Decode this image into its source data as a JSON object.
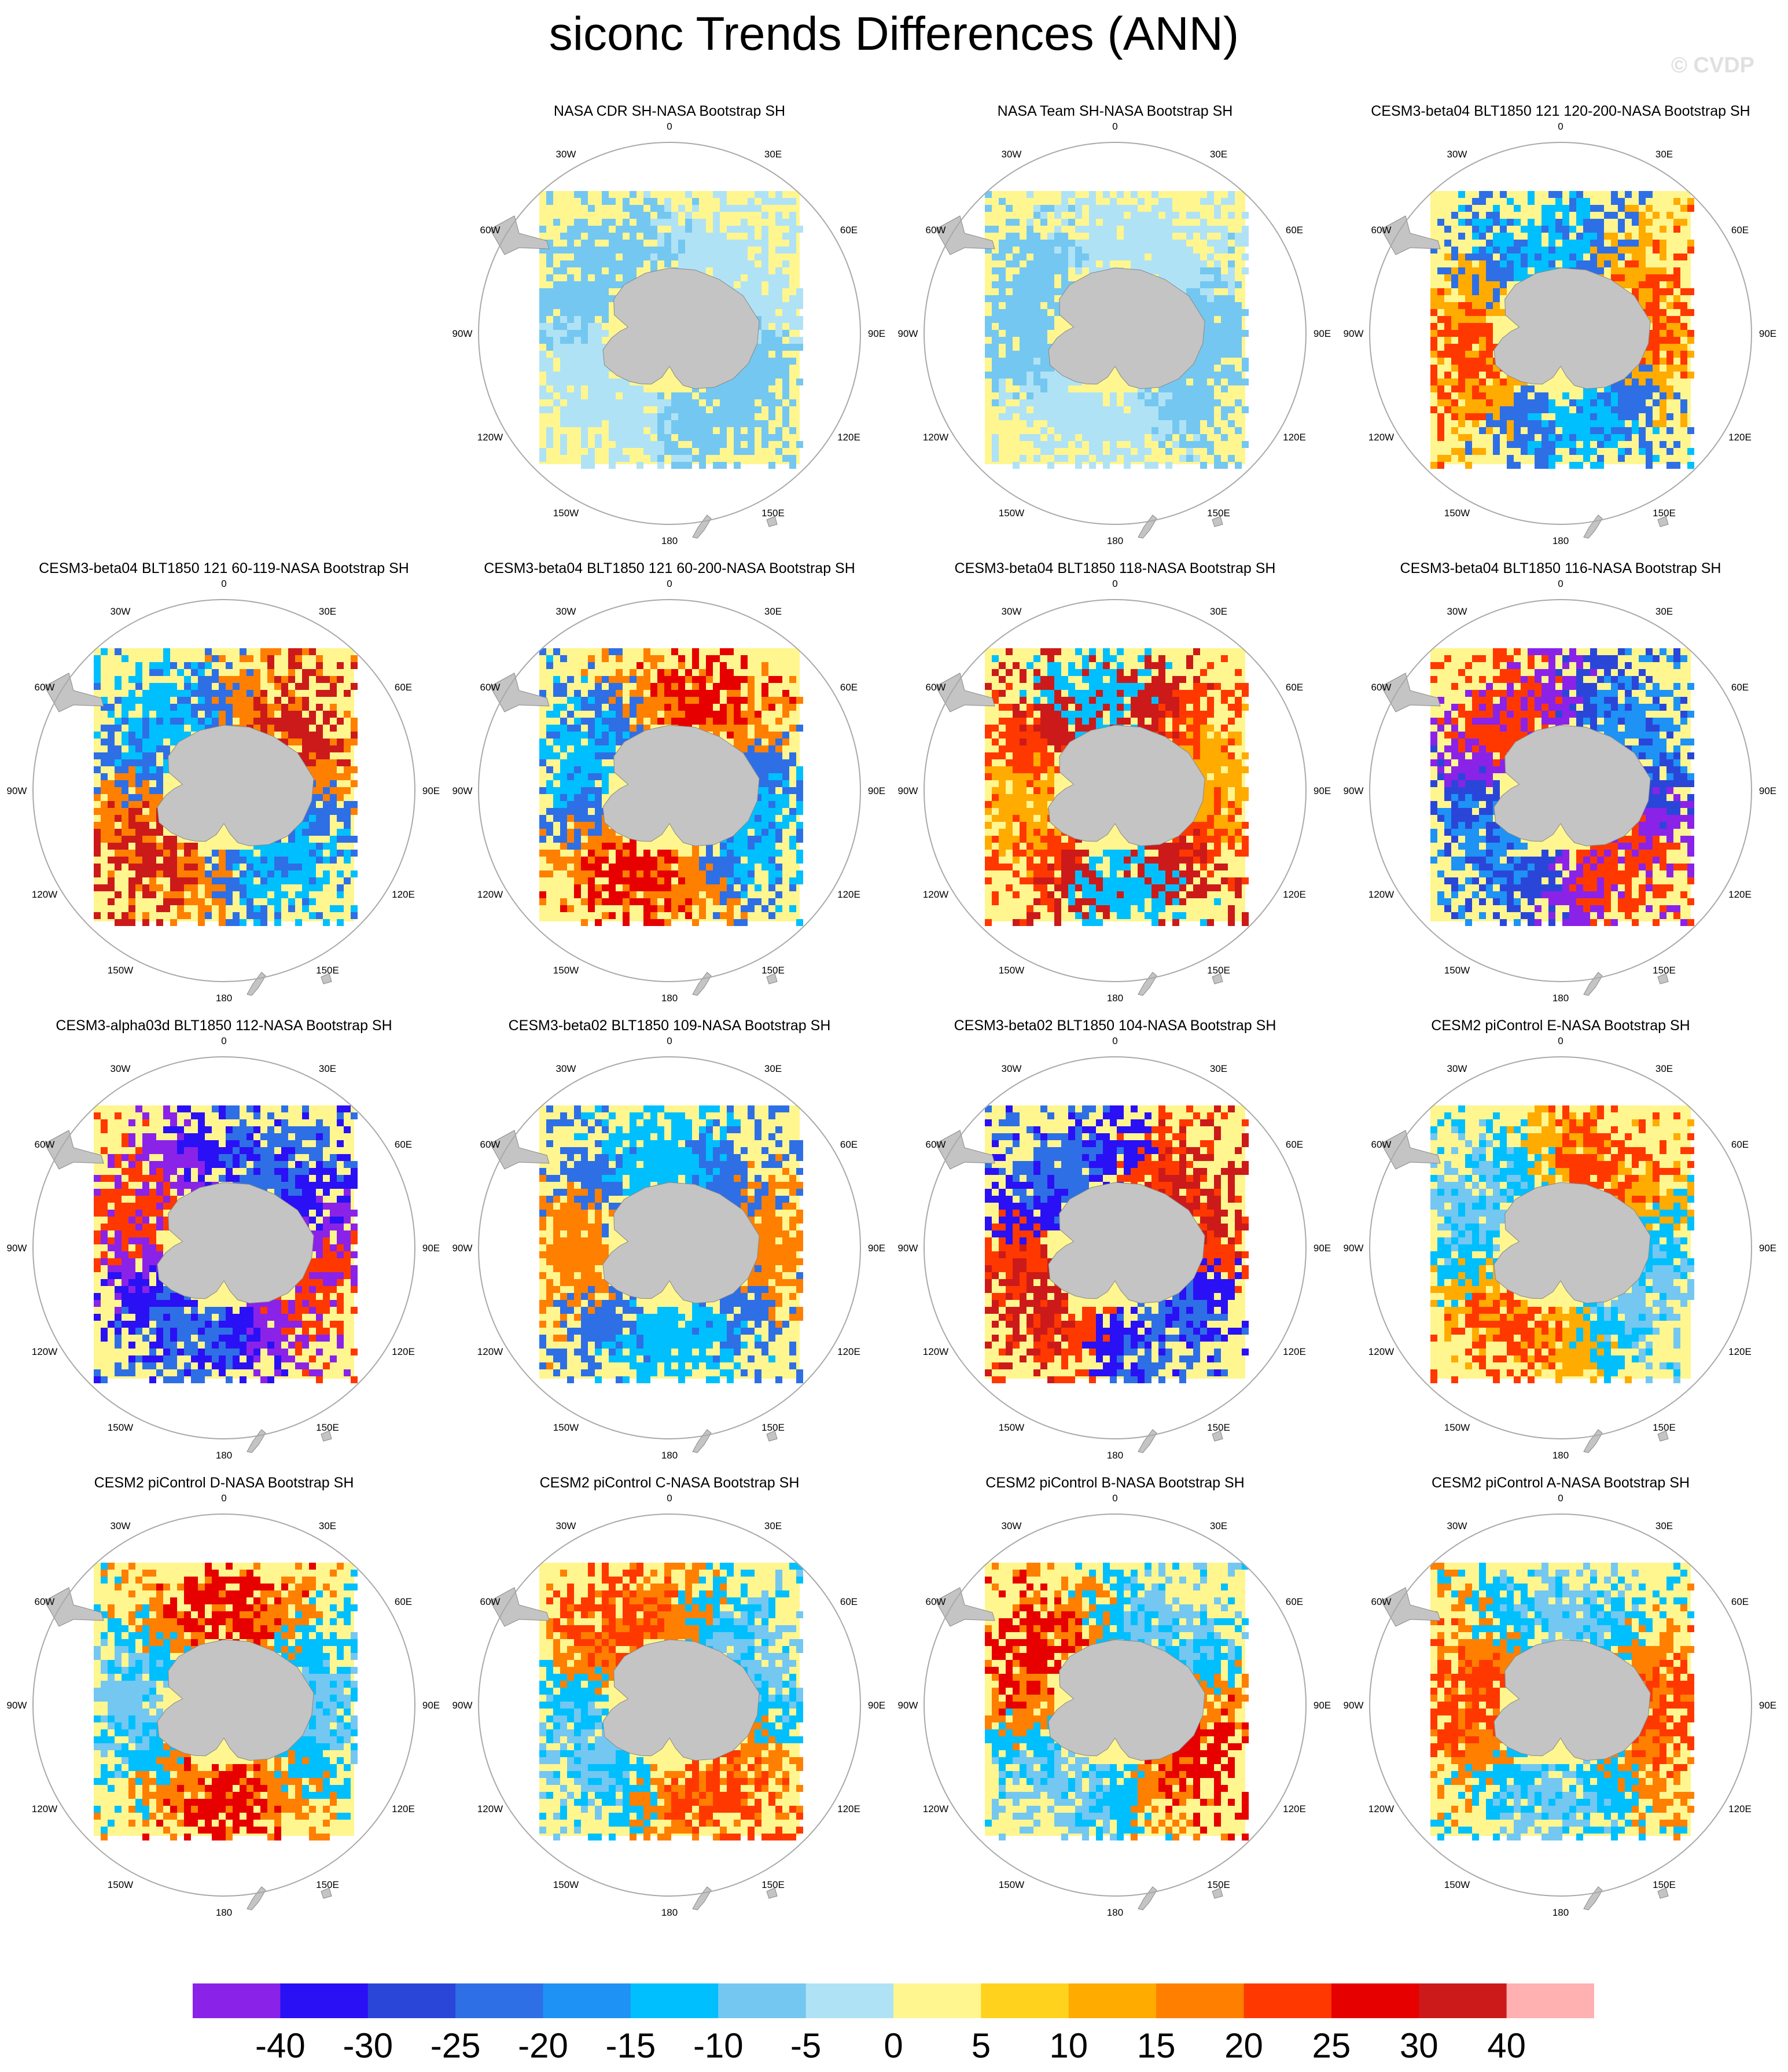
{
  "title": "siconc Trends Differences (ANN)",
  "watermark": "© CVDP",
  "lon_labels": [
    "0",
    "30E",
    "60E",
    "90E",
    "120E",
    "150E",
    "180",
    "150W",
    "120W",
    "90W",
    "60W",
    "30W"
  ],
  "colors": {
    "land": "#c4c4c4",
    "land_outline": "#888888",
    "frame": "#a9a9a9",
    "no_change": "#fff68f"
  },
  "colorbar": {
    "colors": [
      "#8b22e8",
      "#2a10f5",
      "#2a46d9",
      "#2e6fe6",
      "#1e92f5",
      "#00bfff",
      "#74c7f0",
      "#b0e2f5",
      "#fff68f",
      "#ffd21e",
      "#ffab00",
      "#ff7f00",
      "#ff3800",
      "#e60000",
      "#cc1a1a",
      "#ffb0b0"
    ],
    "labels": [
      "-40",
      "-30",
      "-25",
      "-20",
      "-15",
      "-10",
      "-5",
      "0",
      "5",
      "10",
      "15",
      "20",
      "25",
      "30",
      "40"
    ]
  },
  "chart_data": [
    {
      "type": "heatmap",
      "title": "NASA CDR SH-NASA Bootstrap SH",
      "pattern": "weak",
      "dominant_levels": [
        "0",
        "-5"
      ]
    },
    {
      "type": "heatmap",
      "title": "NASA Team SH-NASA Bootstrap SH",
      "pattern": "weak-negative",
      "dominant_levels": [
        "0",
        "-5"
      ]
    },
    {
      "type": "heatmap",
      "title": "CESM3-beta04 BLT1850 121 120-200-NASA Bootstrap SH",
      "pattern": "mixed",
      "dominant_levels": [
        "-10",
        "-20",
        "10",
        "20"
      ]
    },
    {
      "type": "heatmap",
      "title": "CESM3-beta04 BLT1850 121 60-119-NASA Bootstrap SH",
      "pattern": "mixed",
      "dominant_levels": [
        "-10",
        "-20",
        "15",
        "30"
      ]
    },
    {
      "type": "heatmap",
      "title": "CESM3-beta04 BLT1850 121 60-200-NASA Bootstrap SH",
      "pattern": "mixed",
      "dominant_levels": [
        "-10",
        "-20",
        "15",
        "25"
      ]
    },
    {
      "type": "heatmap",
      "title": "CESM3-beta04 BLT1850 118-NASA Bootstrap SH",
      "pattern": "positive",
      "dominant_levels": [
        "10",
        "20",
        "30",
        "-10"
      ]
    },
    {
      "type": "heatmap",
      "title": "CESM3-beta04 BLT1850 116-NASA Bootstrap SH",
      "pattern": "negative",
      "dominant_levels": [
        "-15",
        "-25",
        "-40",
        "20"
      ]
    },
    {
      "type": "heatmap",
      "title": "CESM3-alpha03d BLT1850 112-NASA Bootstrap SH",
      "pattern": "strong-negative",
      "dominant_levels": [
        "-20",
        "-30",
        "-40",
        "20"
      ]
    },
    {
      "type": "heatmap",
      "title": "CESM3-beta02 BLT1850 109-NASA Bootstrap SH",
      "pattern": "negative",
      "dominant_levels": [
        "-10",
        "-20",
        "15"
      ]
    },
    {
      "type": "heatmap",
      "title": "CESM3-beta02 BLT1850 104-NASA Bootstrap SH",
      "pattern": "strong-negative",
      "dominant_levels": [
        "-20",
        "-30",
        "20",
        "30"
      ]
    },
    {
      "type": "heatmap",
      "title": "CESM2 piControl E-NASA Bootstrap SH",
      "pattern": "mixed",
      "dominant_levels": [
        "-5",
        "-10",
        "10",
        "20"
      ]
    },
    {
      "type": "heatmap",
      "title": "CESM2 piControl D-NASA Bootstrap SH",
      "pattern": "mixed",
      "dominant_levels": [
        "-5",
        "-10",
        "15",
        "25"
      ]
    },
    {
      "type": "heatmap",
      "title": "CESM2 piControl C-NASA Bootstrap SH",
      "pattern": "mixed",
      "dominant_levels": [
        "-5",
        "-10",
        "15",
        "20"
      ]
    },
    {
      "type": "heatmap",
      "title": "CESM2 piControl B-NASA Bootstrap SH",
      "pattern": "mixed",
      "dominant_levels": [
        "-5",
        "-10",
        "15",
        "25"
      ]
    },
    {
      "type": "heatmap",
      "title": "CESM2 piControl A-NASA Bootstrap SH",
      "pattern": "mixed",
      "dominant_levels": [
        "-5",
        "-10",
        "15",
        "20"
      ]
    }
  ]
}
